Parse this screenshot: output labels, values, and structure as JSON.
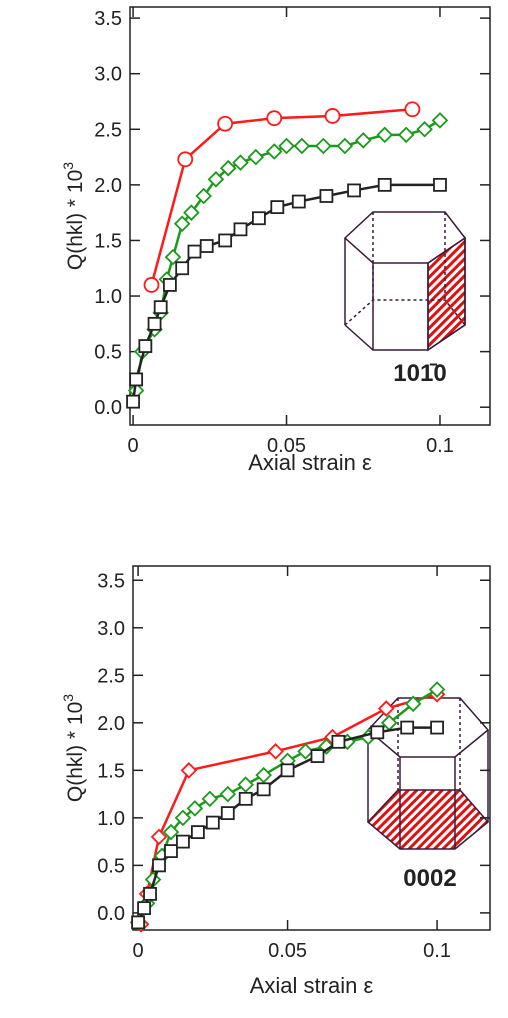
{
  "chart_data": [
    {
      "type": "line",
      "xlabel": "Axial strain ε",
      "ylabel": "Q(hkl) * 10",
      "ylabel_exponent": "3",
      "annotation": "101̄0",
      "xlim": [
        -0.001,
        0.1163
      ],
      "ylim": [
        -0.16,
        3.6
      ],
      "xticks": [
        0,
        0.05,
        0.1
      ],
      "yticks": [
        {
          "value": 0,
          "label": "0.0"
        },
        0.5,
        {
          "value": 1,
          "label": "1.0"
        },
        1.5,
        {
          "value": 2,
          "label": "2.0"
        },
        2.5,
        {
          "value": 3,
          "label": "3.0"
        },
        3.5
      ],
      "series": [
        {
          "color": "#ff1a1a",
          "marker": "circle",
          "x": [
            0.006,
            0.017,
            0.03,
            0.046,
            0.065,
            0.091
          ],
          "values": [
            1.1,
            2.23,
            2.55,
            2.6,
            2.62,
            2.68
          ]
        },
        {
          "color": "#1a9a1a",
          "marker": "diamond",
          "x": [
            0.001,
            0.003,
            0.007,
            0.009,
            0.011,
            0.013,
            0.016,
            0.019,
            0.023,
            0.027,
            0.031,
            0.035,
            0.04,
            0.046,
            0.05,
            0.055,
            0.062,
            0.069,
            0.075,
            0.082,
            0.089,
            0.095,
            0.1
          ],
          "values": [
            0.15,
            0.5,
            0.7,
            0.85,
            1.15,
            1.35,
            1.65,
            1.75,
            1.9,
            2.05,
            2.15,
            2.2,
            2.25,
            2.3,
            2.35,
            2.35,
            2.35,
            2.35,
            2.4,
            2.45,
            2.45,
            2.5,
            2.58
          ]
        },
        {
          "color": "#222222",
          "marker": "square",
          "x": [
            0,
            0.001,
            0.004,
            0.007,
            0.009,
            0.012,
            0.016,
            0.02,
            0.024,
            0.03,
            0.035,
            0.041,
            0.047,
            0.054,
            0.063,
            0.072,
            0.082,
            0.1
          ],
          "values": [
            0.05,
            0.25,
            0.55,
            0.75,
            0.9,
            1.1,
            1.25,
            1.4,
            1.45,
            1.5,
            1.6,
            1.7,
            1.8,
            1.85,
            1.9,
            1.95,
            2.0,
            2.0
          ]
        }
      ]
    },
    {
      "type": "line",
      "xlabel": "Axial strain ε",
      "ylabel": "Q(hkl) * 10",
      "ylabel_exponent": "3",
      "annotation": "0002",
      "xlim": [
        -0.0017,
        0.1177
      ],
      "ylim": [
        -0.18,
        3.65
      ],
      "xticks": [
        0,
        0.05,
        0.1
      ],
      "yticks": [
        {
          "value": 0,
          "label": "0.0"
        },
        0.5,
        {
          "value": 1,
          "label": "1.0"
        },
        1.5,
        {
          "value": 2,
          "label": "2.0"
        },
        2.5,
        {
          "value": 3,
          "label": "3.0"
        },
        3.5
      ],
      "series": [
        {
          "color": "#ff1a1a",
          "marker": "diamond",
          "x": [
            0.001,
            0.003,
            0.007,
            0.017,
            0.046,
            0.065,
            0.083,
            0.1
          ],
          "values": [
            -0.12,
            0.2,
            0.8,
            1.5,
            1.7,
            1.85,
            2.15,
            2.3
          ]
        },
        {
          "color": "#1a9a1a",
          "marker": "diamond",
          "x": [
            0,
            0.003,
            0.005,
            0.008,
            0.011,
            0.015,
            0.019,
            0.024,
            0.03,
            0.036,
            0.042,
            0.05,
            0.056,
            0.063,
            0.07,
            0.077,
            0.084,
            0.092,
            0.1
          ],
          "values": [
            -0.1,
            0.1,
            0.35,
            0.6,
            0.85,
            1.0,
            1.1,
            1.2,
            1.25,
            1.35,
            1.45,
            1.6,
            1.7,
            1.75,
            1.8,
            1.85,
            2.0,
            2.2,
            2.35
          ]
        },
        {
          "color": "#222222",
          "marker": "square",
          "x": [
            0,
            0.002,
            0.004,
            0.007,
            0.011,
            0.015,
            0.02,
            0.025,
            0.03,
            0.036,
            0.042,
            0.05,
            0.06,
            0.067,
            0.08,
            0.09,
            0.1
          ],
          "values": [
            -0.1,
            0.05,
            0.2,
            0.5,
            0.65,
            0.75,
            0.85,
            0.95,
            1.05,
            1.2,
            1.3,
            1.5,
            1.65,
            1.8,
            1.9,
            1.95,
            1.95
          ]
        }
      ]
    }
  ]
}
